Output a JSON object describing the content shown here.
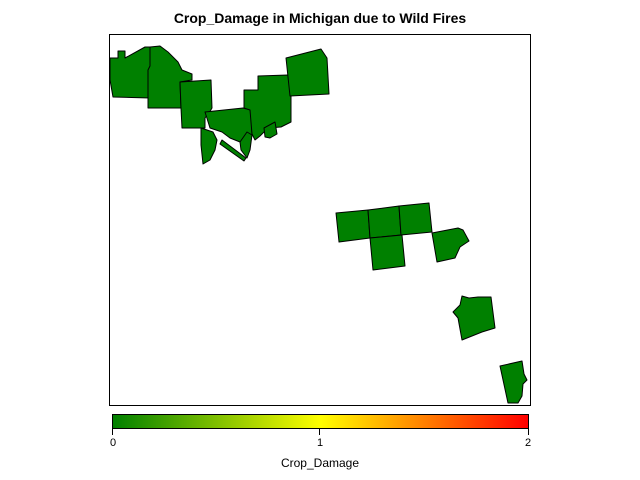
{
  "map": {
    "title": "Crop_Damage in Michigan due to Wild Fires",
    "region": "Michigan",
    "fill_color": "#008000",
    "county_count": 18
  },
  "legend": {
    "title": "Crop_Damage",
    "min_color": "#008000",
    "mid_color": "#ffff00",
    "max_color": "#ff0000",
    "ticks": [
      {
        "value": 0,
        "label": "0"
      },
      {
        "value": 1,
        "label": "1"
      },
      {
        "value": 2,
        "label": "2"
      }
    ]
  }
}
